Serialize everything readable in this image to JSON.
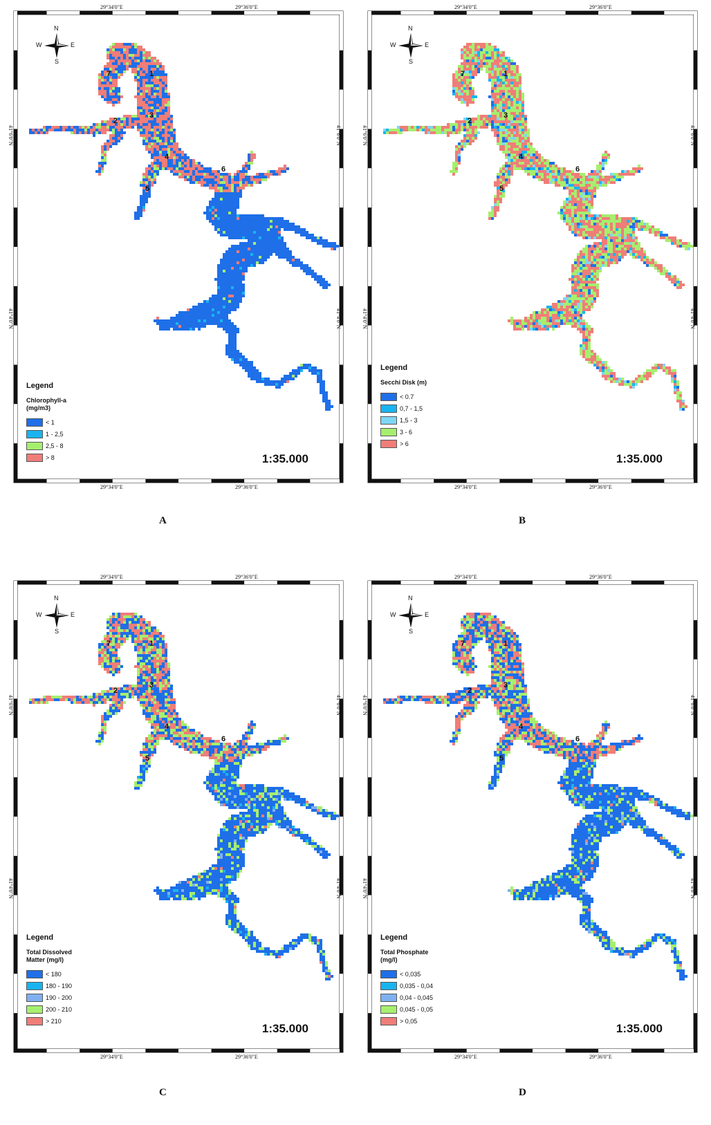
{
  "maps": [
    {
      "id": "A",
      "label": "A",
      "legend_title": "Legend",
      "variable": "Chlorophyll-a\n (mg/m3)",
      "classes": [
        {
          "label": "< 1",
          "color": "#1f6fe8"
        },
        {
          "label": "1 - 2,5",
          "color": "#19b4f0"
        },
        {
          "label": "2,5 - 8",
          "color": "#a6ef6e"
        },
        {
          "label": "> 8",
          "color": "#f07d78"
        }
      ],
      "dominant": [
        "#1f6fe8",
        "#f07d78"
      ],
      "scale": "1:35.000",
      "lon_labels": [
        "29°34'0\"E",
        "29°36'0\"E"
      ],
      "lat_labels": [
        "41°6'0\"N",
        "41°4'0\"N"
      ]
    },
    {
      "id": "B",
      "label": "B",
      "legend_title": "Legend",
      "variable": "Secchi Disk (m)",
      "classes": [
        {
          "label": "< 0.7",
          "color": "#1f6fe8"
        },
        {
          "label": "0,7 - 1,5",
          "color": "#19b4f0"
        },
        {
          "label": "1,5 - 3",
          "color": "#7fd6f5"
        },
        {
          "label": "3 - 6",
          "color": "#a6ef6e"
        },
        {
          "label": "> 6",
          "color": "#f07d78"
        }
      ],
      "dominant": [
        "#f07d78",
        "#a6ef6e"
      ],
      "scale": "1:35.000",
      "lon_labels": [
        "29°34'0\"E",
        "29°36'0\"E"
      ],
      "lat_labels": [
        "41°6'0\"N",
        "41°4'0\"N"
      ]
    },
    {
      "id": "C",
      "label": "C",
      "legend_title": "Legend",
      "variable": "Total Dissolved\nMatter (mg/l)",
      "classes": [
        {
          "label": "< 180",
          "color": "#1f6fe8"
        },
        {
          "label": "180 - 190",
          "color": "#19b4f0"
        },
        {
          "label": "190 - 200",
          "color": "#7fb0f0"
        },
        {
          "label": "200 - 210",
          "color": "#a6ef6e"
        },
        {
          "label": "> 210",
          "color": "#f07d78"
        }
      ],
      "dominant": [
        "#1f6fe8",
        "#a6ef6e"
      ],
      "scale": "1:35.000",
      "lon_labels": [
        "29°34'0\"E",
        "29°36'0\"E"
      ],
      "lat_labels": [
        "41°6'0\"N",
        "41°4'0\"N"
      ]
    },
    {
      "id": "D",
      "label": "D",
      "legend_title": "Legend",
      "variable": "Total Phosphate\n (mg/l)",
      "classes": [
        {
          "label": "< 0,035",
          "color": "#1f6fe8"
        },
        {
          "label": "0,035 - 0,04",
          "color": "#19b4f0"
        },
        {
          "label": "0,04 - 0,045",
          "color": "#7fb0f0"
        },
        {
          "label": "0,045 - 0,05",
          "color": "#a6ef6e"
        },
        {
          "label": "> 0,05",
          "color": "#f07d78"
        }
      ],
      "dominant": [
        "#1f6fe8",
        "#a6ef6e"
      ],
      "scale": "1:35.000",
      "lon_labels": [
        "29°34'0\"E",
        "29°36'0\"E"
      ],
      "lat_labels": [
        "41°6'0\"N",
        "41°4'0\"N"
      ]
    }
  ],
  "compass": {
    "n": "N",
    "s": "S",
    "e": "E",
    "w": "W"
  },
  "sites": [
    "1",
    "2",
    "3",
    "4",
    "5",
    "6",
    "7"
  ]
}
